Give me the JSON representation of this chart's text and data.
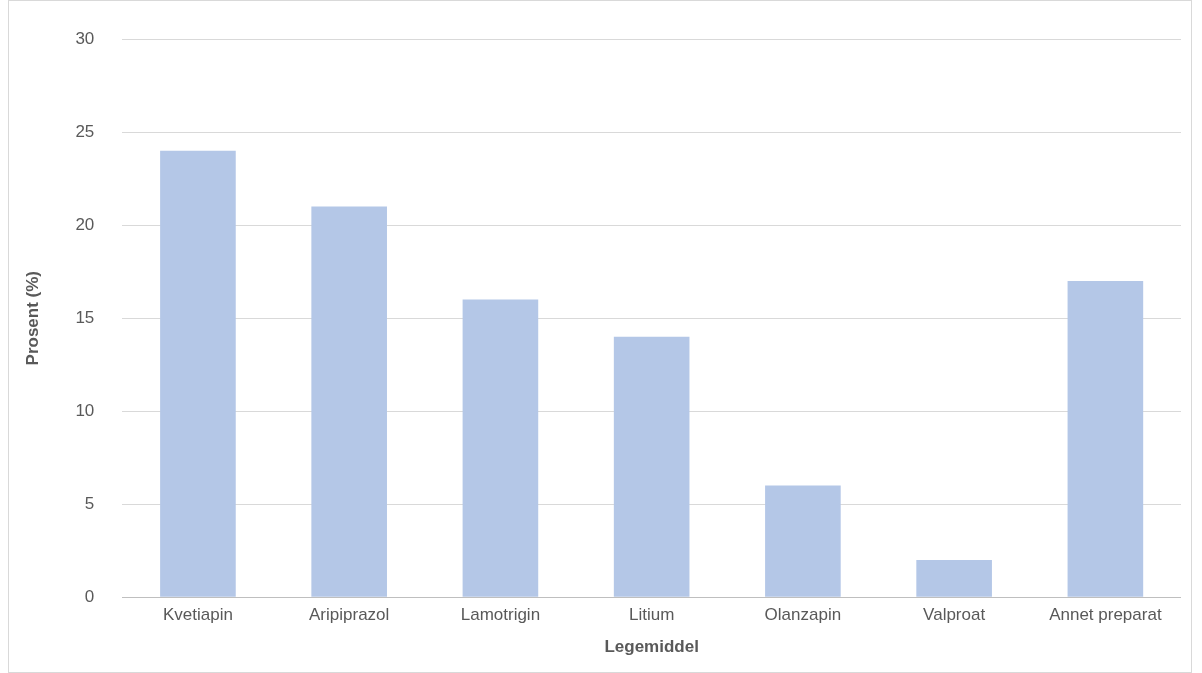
{
  "chart_data": {
    "type": "bar",
    "xlabel": "Legemiddel",
    "ylabel": "Prosent (%)",
    "categories": [
      "Kvetiapin",
      "Aripiprazol",
      "Lamotrigin",
      "Litium",
      "Olanzapin",
      "Valproat",
      "Annet preparat"
    ],
    "values": [
      24,
      21,
      16,
      14,
      6,
      2,
      17
    ],
    "color": "#b4c7e7",
    "ylim": [
      0,
      30
    ],
    "yticks": [
      0,
      5,
      10,
      15,
      20,
      25,
      30
    ],
    "grid": "y",
    "legend": false
  }
}
